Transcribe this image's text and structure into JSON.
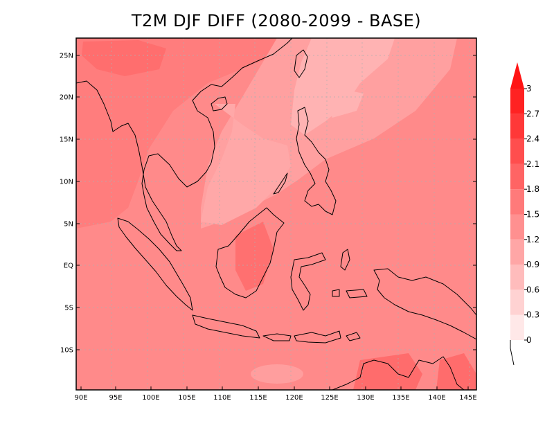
{
  "title": "T2M DJF DIFF (2080-2099 - BASE)",
  "colors": {
    "ocean_base": "#ff8a8a",
    "land_base": "#ff7b7b",
    "scs_light": "#ffb3b3",
    "scs_mid": "#ffa0a0",
    "warm_patch": "#ff6a6a",
    "coast_line": "#000000"
  },
  "chart_data": {
    "type": "heatmap",
    "title": "T2M DJF DIFF (2080-2099 - BASE)",
    "xlabel": "",
    "ylabel": "",
    "x_ticks": [
      "90E",
      "95E",
      "100E",
      "105E",
      "110E",
      "115E",
      "120E",
      "125E",
      "130E",
      "135E",
      "140E",
      "145E"
    ],
    "y_ticks": [
      "25N",
      "20N",
      "15N",
      "10N",
      "5N",
      "EQ",
      "5S",
      "10S"
    ],
    "colorbar": {
      "levels": [
        "0",
        "0.3",
        "0.6",
        "0.9",
        "1.2",
        "1.5",
        "1.8",
        "2.1",
        "2.4",
        "2.7",
        "3"
      ],
      "colors": [
        "#ffe8e8",
        "#ffd2d2",
        "#ffbcbc",
        "#ffa6a6",
        "#ff9090",
        "#ff7a7a",
        "#ff6464",
        "#ff4e4e",
        "#ff3838",
        "#ff2222"
      ],
      "extend": "max"
    }
  }
}
